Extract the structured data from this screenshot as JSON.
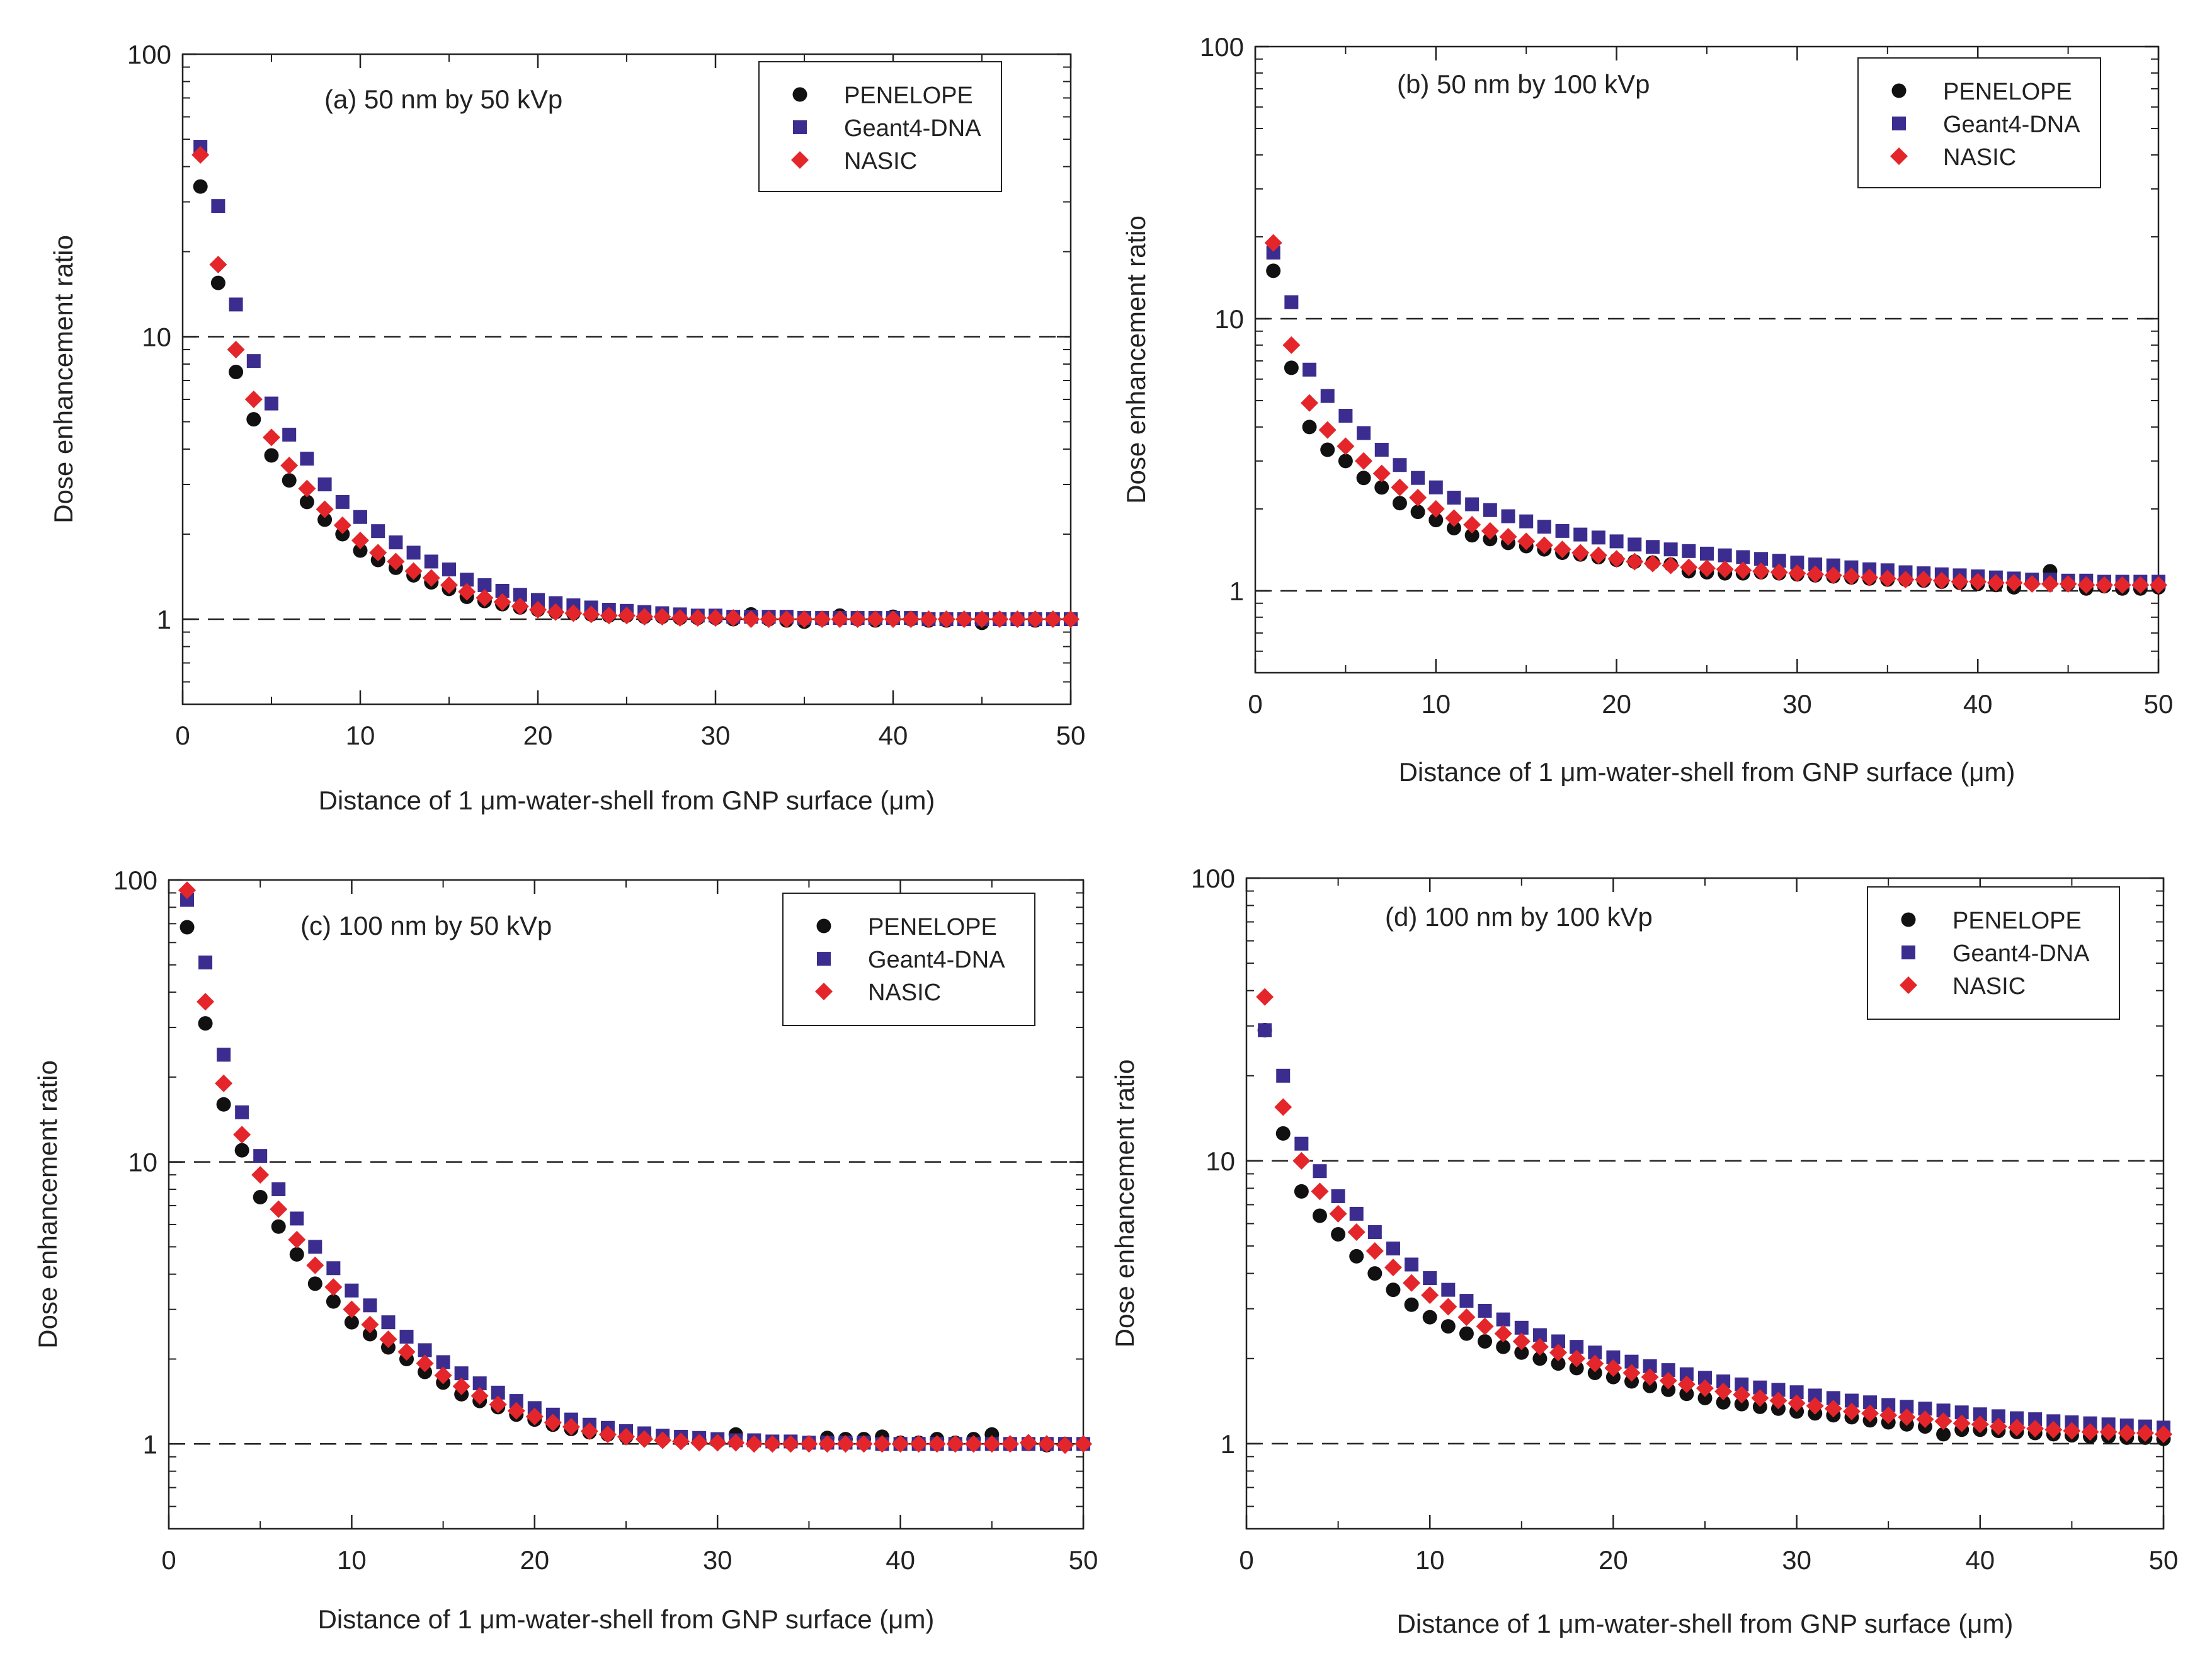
{
  "figure": {
    "xlabel": "Distance of 1 μm-water-shell from GNP surface (μm)",
    "ylabel": "Dose enhancement ratio",
    "legend": [
      "PENELOPE",
      "Geant4-DNA",
      "NASIC"
    ],
    "colors": {
      "penelope": "#111111",
      "geant4": "#3b2d8f",
      "nasic": "#e4262b",
      "axis": "#222222"
    },
    "markers": {
      "penelope": "circle",
      "geant4": "square",
      "nasic": "diamond"
    }
  },
  "chart_data": [
    {
      "type": "scatter",
      "title": "(a) 50 nm by 50 kVp",
      "xlabel": "Distance of 1 μm-water-shell from GNP surface (μm)",
      "ylabel": "Dose enhancement ratio",
      "xlim": [
        0,
        50
      ],
      "ylim": [
        0.5,
        100
      ],
      "yscale": "log",
      "xticks": [
        "0",
        "10",
        "20",
        "30",
        "40",
        "50"
      ],
      "yticks": [
        "1",
        "10",
        "100"
      ],
      "reference_lines": [
        1,
        10
      ],
      "legend_position": "top-right",
      "x": [
        1,
        2,
        3,
        4,
        5,
        6,
        7,
        8,
        9,
        10,
        11,
        12,
        13,
        14,
        15,
        16,
        17,
        18,
        19,
        20,
        21,
        22,
        23,
        24,
        25,
        26,
        27,
        28,
        29,
        30,
        31,
        32,
        33,
        34,
        35,
        36,
        37,
        38,
        39,
        40,
        41,
        42,
        43,
        44,
        45,
        46,
        47,
        48,
        49,
        50
      ],
      "series": [
        {
          "name": "PENELOPE",
          "values": [
            34,
            15.5,
            7.5,
            5.1,
            3.8,
            3.1,
            2.6,
            2.25,
            2.0,
            1.75,
            1.62,
            1.52,
            1.43,
            1.35,
            1.28,
            1.2,
            1.16,
            1.13,
            1.1,
            1.08,
            1.06,
            1.05,
            1.04,
            1.03,
            1.03,
            1.02,
            1.02,
            1.01,
            1.01,
            1.01,
            1.0,
            1.04,
            1.0,
            0.99,
            0.98,
            1.0,
            1.03,
            1.0,
            0.99,
            1.02,
            1.0,
            0.99,
            0.99,
            1.0,
            0.97,
            1.0,
            1.0,
            0.99,
            1.0,
            1.0
          ]
        },
        {
          "name": "Geant4-DNA",
          "values": [
            47,
            29,
            13,
            8.2,
            5.8,
            4.5,
            3.7,
            3.0,
            2.6,
            2.3,
            2.05,
            1.87,
            1.72,
            1.6,
            1.5,
            1.38,
            1.32,
            1.26,
            1.22,
            1.17,
            1.14,
            1.12,
            1.1,
            1.08,
            1.07,
            1.06,
            1.05,
            1.04,
            1.03,
            1.03,
            1.02,
            1.02,
            1.02,
            1.02,
            1.01,
            1.01,
            1.01,
            1.01,
            1.01,
            1.01,
            1.01,
            1.0,
            1.0,
            1.0,
            1.0,
            1.0,
            1.0,
            1.0,
            1.0,
            1.0
          ]
        },
        {
          "name": "NASIC",
          "values": [
            44,
            18,
            9.0,
            6.0,
            4.4,
            3.5,
            2.9,
            2.45,
            2.15,
            1.9,
            1.72,
            1.6,
            1.48,
            1.4,
            1.32,
            1.25,
            1.19,
            1.15,
            1.11,
            1.08,
            1.06,
            1.05,
            1.04,
            1.03,
            1.03,
            1.02,
            1.02,
            1.01,
            1.01,
            1.01,
            1.01,
            1.0,
            1.0,
            1.0,
            1.0,
            1.0,
            1.0,
            1.0,
            1.0,
            1.0,
            1.0,
            1.0,
            1.0,
            1.0,
            1.0,
            1.0,
            1.0,
            1.0,
            1.0,
            1.0
          ]
        }
      ]
    },
    {
      "type": "scatter",
      "title": "(b) 50 nm by 100 kVp",
      "xlabel": "Distance of 1 μm-water-shell from GNP surface (μm)",
      "ylabel": "Dose enhancement ratio",
      "xlim": [
        0,
        50
      ],
      "ylim": [
        0.5,
        100
      ],
      "yscale": "log",
      "xticks": [
        "0",
        "10",
        "20",
        "30",
        "40",
        "50"
      ],
      "yticks": [
        "1",
        "10",
        "100"
      ],
      "reference_lines": [
        1,
        10
      ],
      "legend_position": "top-right",
      "x": [
        1,
        2,
        3,
        4,
        5,
        6,
        7,
        8,
        9,
        10,
        11,
        12,
        13,
        14,
        15,
        16,
        17,
        18,
        19,
        20,
        21,
        22,
        23,
        24,
        25,
        26,
        27,
        28,
        29,
        30,
        31,
        32,
        33,
        34,
        35,
        36,
        37,
        38,
        39,
        40,
        41,
        42,
        43,
        44,
        45,
        46,
        47,
        48,
        49,
        50
      ],
      "series": [
        {
          "name": "PENELOPE",
          "values": [
            15,
            6.6,
            4.0,
            3.3,
            3.0,
            2.6,
            2.4,
            2.1,
            1.95,
            1.82,
            1.7,
            1.6,
            1.55,
            1.5,
            1.46,
            1.42,
            1.38,
            1.36,
            1.33,
            1.3,
            1.28,
            1.27,
            1.25,
            1.18,
            1.17,
            1.16,
            1.16,
            1.17,
            1.16,
            1.15,
            1.14,
            1.13,
            1.12,
            1.11,
            1.1,
            1.1,
            1.09,
            1.08,
            1.07,
            1.06,
            1.05,
            1.03,
            1.07,
            1.18,
            1.06,
            1.02,
            1.04,
            1.02,
            1.02,
            1.03
          ]
        },
        {
          "name": "Geant4-DNA",
          "values": [
            17.5,
            11.5,
            6.5,
            5.2,
            4.4,
            3.8,
            3.3,
            2.9,
            2.6,
            2.4,
            2.2,
            2.08,
            1.98,
            1.88,
            1.8,
            1.72,
            1.66,
            1.61,
            1.57,
            1.52,
            1.48,
            1.45,
            1.42,
            1.4,
            1.37,
            1.35,
            1.33,
            1.31,
            1.29,
            1.27,
            1.25,
            1.24,
            1.22,
            1.2,
            1.19,
            1.17,
            1.16,
            1.15,
            1.14,
            1.13,
            1.12,
            1.11,
            1.1,
            1.1,
            1.09,
            1.09,
            1.08,
            1.08,
            1.08,
            1.08
          ]
        },
        {
          "name": "NASIC",
          "values": [
            19,
            8.0,
            4.9,
            3.9,
            3.4,
            3.0,
            2.7,
            2.4,
            2.2,
            2.0,
            1.85,
            1.75,
            1.66,
            1.58,
            1.52,
            1.47,
            1.42,
            1.38,
            1.35,
            1.31,
            1.28,
            1.26,
            1.24,
            1.22,
            1.21,
            1.2,
            1.19,
            1.18,
            1.17,
            1.16,
            1.15,
            1.14,
            1.13,
            1.12,
            1.11,
            1.1,
            1.1,
            1.09,
            1.08,
            1.08,
            1.07,
            1.07,
            1.06,
            1.06,
            1.06,
            1.05,
            1.05,
            1.05,
            1.05,
            1.05
          ]
        }
      ]
    },
    {
      "type": "scatter",
      "title": "(c) 100 nm by 50 kVp",
      "xlabel": "Distance of 1 μm-water-shell from GNP surface (μm)",
      "ylabel": "Dose enhancement ratio",
      "xlim": [
        0,
        50
      ],
      "ylim": [
        0.5,
        100
      ],
      "yscale": "log",
      "xticks": [
        "0",
        "10",
        "20",
        "30",
        "40",
        "50"
      ],
      "yticks": [
        "1",
        "10",
        "100"
      ],
      "reference_lines": [
        1,
        10
      ],
      "legend_position": "top-right",
      "x": [
        1,
        2,
        3,
        4,
        5,
        6,
        7,
        8,
        9,
        10,
        11,
        12,
        13,
        14,
        15,
        16,
        17,
        18,
        19,
        20,
        21,
        22,
        23,
        24,
        25,
        26,
        27,
        28,
        29,
        30,
        31,
        32,
        33,
        34,
        35,
        36,
        37,
        38,
        39,
        40,
        41,
        42,
        43,
        44,
        45,
        46,
        47,
        48,
        49,
        50
      ],
      "series": [
        {
          "name": "PENELOPE",
          "values": [
            68,
            31,
            16,
            11,
            7.5,
            5.9,
            4.7,
            3.7,
            3.2,
            2.7,
            2.45,
            2.2,
            2.0,
            1.8,
            1.65,
            1.5,
            1.42,
            1.35,
            1.27,
            1.22,
            1.17,
            1.13,
            1.1,
            1.08,
            1.06,
            1.05,
            1.04,
            1.03,
            1.03,
            1.02,
            1.08,
            1.02,
            1.01,
            1.01,
            1.01,
            1.05,
            1.04,
            1.04,
            1.06,
            1.01,
            1.01,
            1.04,
            1.01,
            1.04,
            1.08,
            1.0,
            1.0,
            0.99,
            1.0,
            1.0
          ]
        },
        {
          "name": "Geant4-DNA",
          "values": [
            85,
            51,
            24,
            15,
            10.5,
            8.0,
            6.3,
            5.0,
            4.2,
            3.5,
            3.1,
            2.7,
            2.4,
            2.15,
            1.95,
            1.78,
            1.64,
            1.52,
            1.42,
            1.34,
            1.27,
            1.22,
            1.17,
            1.14,
            1.11,
            1.09,
            1.07,
            1.06,
            1.05,
            1.04,
            1.03,
            1.03,
            1.02,
            1.02,
            1.01,
            1.01,
            1.01,
            1.01,
            1.0,
            1.0,
            1.0,
            1.0,
            1.0,
            1.0,
            1.0,
            1.0,
            1.0,
            1.0,
            1.0,
            1.0
          ]
        },
        {
          "name": "NASIC",
          "values": [
            92,
            37,
            19,
            12.5,
            9.0,
            6.8,
            5.3,
            4.3,
            3.6,
            3.0,
            2.65,
            2.35,
            2.12,
            1.93,
            1.75,
            1.6,
            1.48,
            1.38,
            1.31,
            1.25,
            1.19,
            1.15,
            1.11,
            1.08,
            1.06,
            1.04,
            1.03,
            1.02,
            1.01,
            1.01,
            1.01,
            1.0,
            1.0,
            1.0,
            1.0,
            1.0,
            1.0,
            1.0,
            1.0,
            1.0,
            1.0,
            1.0,
            1.0,
            1.0,
            1.0,
            1.0,
            1.01,
            1.0,
            0.99,
            1.0
          ]
        }
      ]
    },
    {
      "type": "scatter",
      "title": "(d) 100 nm by 100 kVp",
      "xlabel": "Distance of 1 μm-water-shell from GNP surface (μm)",
      "ylabel": "Dose enhancement ratio",
      "xlim": [
        0,
        50
      ],
      "ylim": [
        0.5,
        100
      ],
      "yscale": "log",
      "xticks": [
        "0",
        "10",
        "20",
        "30",
        "40",
        "50"
      ],
      "yticks": [
        "1",
        "10",
        "100"
      ],
      "reference_lines": [
        1,
        10
      ],
      "legend_position": "top-right",
      "x": [
        1,
        2,
        3,
        4,
        5,
        6,
        7,
        8,
        9,
        10,
        11,
        12,
        13,
        14,
        15,
        16,
        17,
        18,
        19,
        20,
        21,
        22,
        23,
        24,
        25,
        26,
        27,
        28,
        29,
        30,
        31,
        32,
        33,
        34,
        35,
        36,
        37,
        38,
        39,
        40,
        41,
        42,
        43,
        44,
        45,
        46,
        47,
        48,
        49,
        50
      ],
      "series": [
        {
          "name": "PENELOPE",
          "values": [
            29,
            12.5,
            7.8,
            6.4,
            5.5,
            4.6,
            4.0,
            3.5,
            3.1,
            2.8,
            2.6,
            2.45,
            2.3,
            2.2,
            2.1,
            2.0,
            1.92,
            1.85,
            1.78,
            1.72,
            1.66,
            1.6,
            1.55,
            1.5,
            1.45,
            1.4,
            1.38,
            1.35,
            1.33,
            1.3,
            1.28,
            1.26,
            1.24,
            1.21,
            1.19,
            1.17,
            1.15,
            1.08,
            1.12,
            1.12,
            1.11,
            1.1,
            1.09,
            1.08,
            1.07,
            1.06,
            1.06,
            1.05,
            1.05,
            1.04
          ]
        },
        {
          "name": "Geant4-DNA",
          "values": [
            29,
            20,
            11.5,
            9.2,
            7.5,
            6.5,
            5.6,
            4.9,
            4.3,
            3.85,
            3.5,
            3.2,
            2.95,
            2.75,
            2.57,
            2.42,
            2.3,
            2.2,
            2.1,
            2.02,
            1.95,
            1.88,
            1.82,
            1.76,
            1.71,
            1.66,
            1.62,
            1.58,
            1.55,
            1.52,
            1.48,
            1.45,
            1.42,
            1.4,
            1.37,
            1.35,
            1.33,
            1.31,
            1.29,
            1.27,
            1.25,
            1.23,
            1.22,
            1.2,
            1.19,
            1.18,
            1.17,
            1.16,
            1.15,
            1.14
          ]
        },
        {
          "name": "NASIC",
          "values": [
            38,
            15.5,
            10,
            7.8,
            6.5,
            5.6,
            4.8,
            4.2,
            3.7,
            3.35,
            3.05,
            2.8,
            2.6,
            2.45,
            2.3,
            2.2,
            2.1,
            2.0,
            1.92,
            1.85,
            1.78,
            1.72,
            1.67,
            1.62,
            1.57,
            1.53,
            1.49,
            1.45,
            1.42,
            1.39,
            1.36,
            1.33,
            1.3,
            1.28,
            1.26,
            1.24,
            1.22,
            1.2,
            1.18,
            1.17,
            1.15,
            1.14,
            1.13,
            1.12,
            1.11,
            1.1,
            1.1,
            1.09,
            1.09,
            1.08
          ]
        }
      ]
    }
  ]
}
